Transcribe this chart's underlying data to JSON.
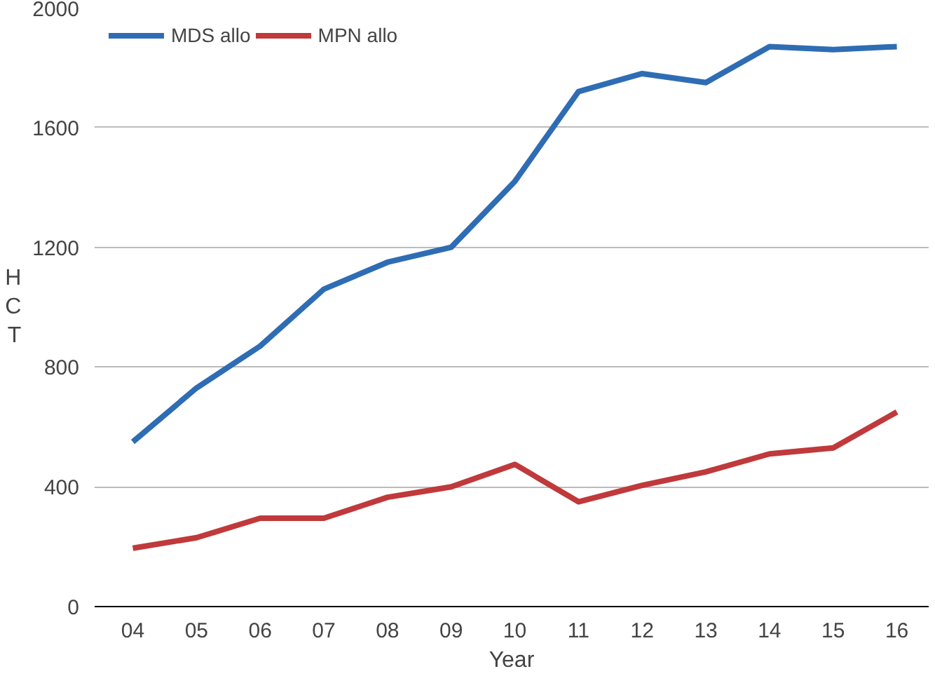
{
  "chart_data": {
    "type": "line",
    "xlabel": "Year",
    "ylabel": "HCT",
    "categories": [
      "04",
      "05",
      "06",
      "07",
      "08",
      "09",
      "10",
      "11",
      "12",
      "13",
      "14",
      "15",
      "16"
    ],
    "series": [
      {
        "name": "MDS allo",
        "color": "#2e6db4",
        "values": [
          550,
          730,
          870,
          1060,
          1150,
          1200,
          1420,
          1720,
          1780,
          1750,
          1870,
          1860,
          1870
        ]
      },
      {
        "name": "MPN allo",
        "color": "#c0393b",
        "values": [
          195,
          230,
          295,
          295,
          365,
          400,
          475,
          350,
          405,
          450,
          510,
          530,
          650
        ]
      }
    ],
    "ylim": [
      0,
      2000
    ],
    "yticks": [
      0,
      400,
      800,
      1200,
      1600,
      2000
    ],
    "grid": "y",
    "legend": "top left",
    "marker": "none",
    "line_style": "solid"
  }
}
